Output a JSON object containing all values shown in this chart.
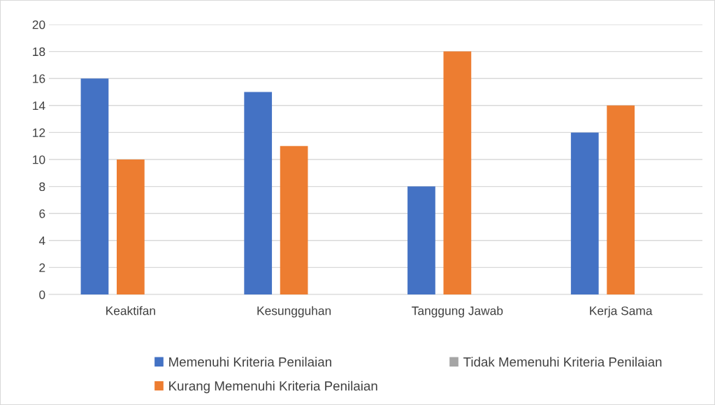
{
  "chart_data": {
    "type": "bar",
    "categories": [
      "Keaktifan",
      "Kesungguhan",
      "Tanggung Jawab",
      "Kerja Sama"
    ],
    "series": [
      {
        "name": "Memenuhi Kriteria Penilaian",
        "color": "#4472c4",
        "values": [
          16,
          15,
          8,
          12
        ]
      },
      {
        "name": "Kurang Memenuhi Kriteria Penilaian",
        "color": "#ed7d31",
        "values": [
          10,
          11,
          18,
          14
        ]
      },
      {
        "name": "Tidak Memenuhi Kriteria Penilaian",
        "color": "#a5a5a5",
        "values": [
          0,
          0,
          0,
          0
        ]
      }
    ],
    "ylim": [
      0,
      20
    ],
    "yticks": [
      0,
      2,
      4,
      6,
      8,
      10,
      12,
      14,
      16,
      18,
      20
    ],
    "grid": "y",
    "legend": "bottom"
  }
}
